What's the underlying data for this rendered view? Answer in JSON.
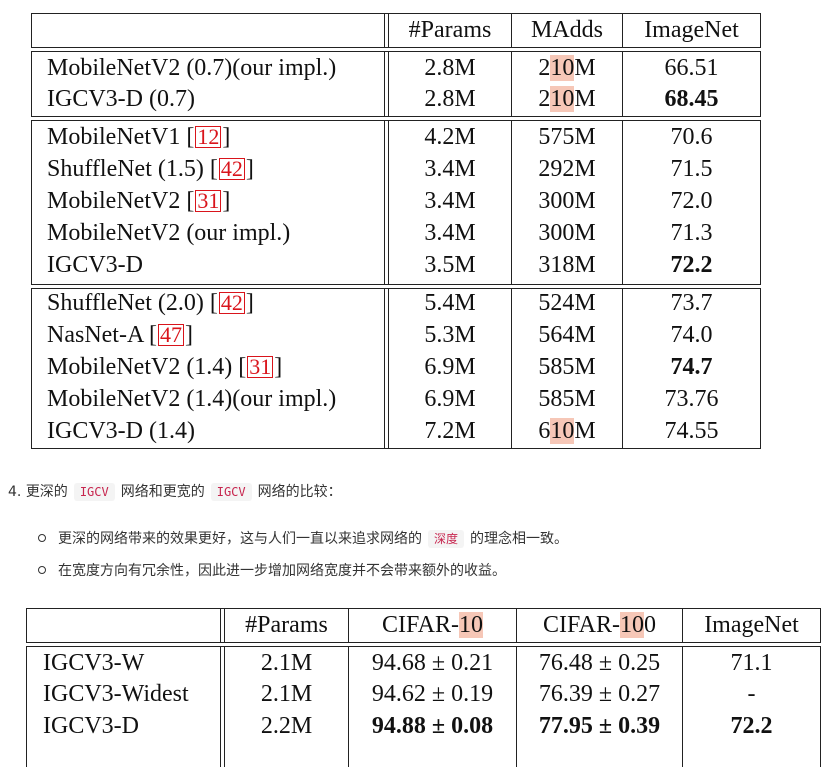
{
  "table1": {
    "headers": [
      "#Params",
      "MAdds",
      "ImageNet"
    ],
    "group1": [
      {
        "model": "MobileNetV2 (0.7)(our impl.)",
        "params": "2.8M",
        "madds_a": "2",
        "madds_h": "10",
        "madds_b": "M",
        "imagenet": "66.51"
      },
      {
        "model": "IGCV3-D (0.7)",
        "params": "2.8M",
        "madds_a": "2",
        "madds_h": "10",
        "madds_b": "M",
        "imagenet": "68.45"
      }
    ],
    "group2": [
      {
        "model": "MobileNetV1 [",
        "ref": "12",
        "model_end": "]",
        "params": "4.2M",
        "madds": "575M",
        "imagenet": "70.6"
      },
      {
        "model": "ShuffleNet (1.5) [",
        "ref": "42",
        "model_end": "]",
        "params": "3.4M",
        "madds": "292M",
        "imagenet": "71.5"
      },
      {
        "model": "MobileNetV2 [",
        "ref": "31",
        "model_end": "]",
        "params": "3.4M",
        "madds": "300M",
        "imagenet": "72.0"
      },
      {
        "model": "MobileNetV2 (our impl.)",
        "params": "3.4M",
        "madds": "300M",
        "imagenet": "71.3"
      },
      {
        "model": "IGCV3-D",
        "params": "3.5M",
        "madds": "318M",
        "imagenet": "72.2"
      }
    ],
    "group3": [
      {
        "model": "ShuffleNet (2.0) [",
        "ref": "42",
        "model_end": "]",
        "params": "5.4M",
        "madds": "524M",
        "imagenet": "73.7"
      },
      {
        "model": "NasNet-A [",
        "ref": "47",
        "model_end": "]",
        "params": "5.3M",
        "madds": "564M",
        "imagenet": "74.0"
      },
      {
        "model": "MobileNetV2 (1.4) [",
        "ref": "31",
        "model_end": "]",
        "params": "6.9M",
        "madds": "585M",
        "imagenet": "74.7"
      },
      {
        "model": "MobileNetV2 (1.4)(our impl.)",
        "params": "6.9M",
        "madds": "585M",
        "imagenet": "73.76"
      },
      {
        "model": "IGCV3-D (1.4)",
        "params": "7.2M",
        "madds_a": "6",
        "madds_h": "10",
        "madds_b": "M",
        "imagenet": "74.55"
      }
    ]
  },
  "section": {
    "number": "4.",
    "pre": "更深的",
    "code1": "IGCV",
    "mid": "网络和更宽的",
    "code2": "IGCV",
    "post": "网络的比较：",
    "bullet1_pre": "更深的网络带来的效果更好，这与人们一直以来追求网络的",
    "bullet1_code": "深度",
    "bullet1_post": "的理念相一致。",
    "bullet2": "在宽度方向有冗余性，因此进一步增加网络宽度并不会带来额外的收益。"
  },
  "table2": {
    "h_params": "#Params",
    "h_c10_a": "CIFAR-",
    "h_c10_h": "10",
    "h_c100_a": "CIFAR-",
    "h_c100_h": "10",
    "h_c100_b": "0",
    "h_imagenet": "ImageNet",
    "rows": [
      {
        "model": "IGCV3-W",
        "params": "2.1M",
        "c10": "94.68 ± 0.21",
        "c100": "76.48 ± 0.25",
        "imagenet": "71.1"
      },
      {
        "model": "IGCV3-Widest",
        "params": "2.1M",
        "c10": "94.62 ± 0.19",
        "c100": "76.39 ± 0.27",
        "imagenet": "-"
      },
      {
        "model": "IGCV3-D",
        "params": "2.2M",
        "c10": "94.88 ± 0.08",
        "c100": "77.95 ± 0.39",
        "imagenet": "72.2"
      }
    ]
  }
}
